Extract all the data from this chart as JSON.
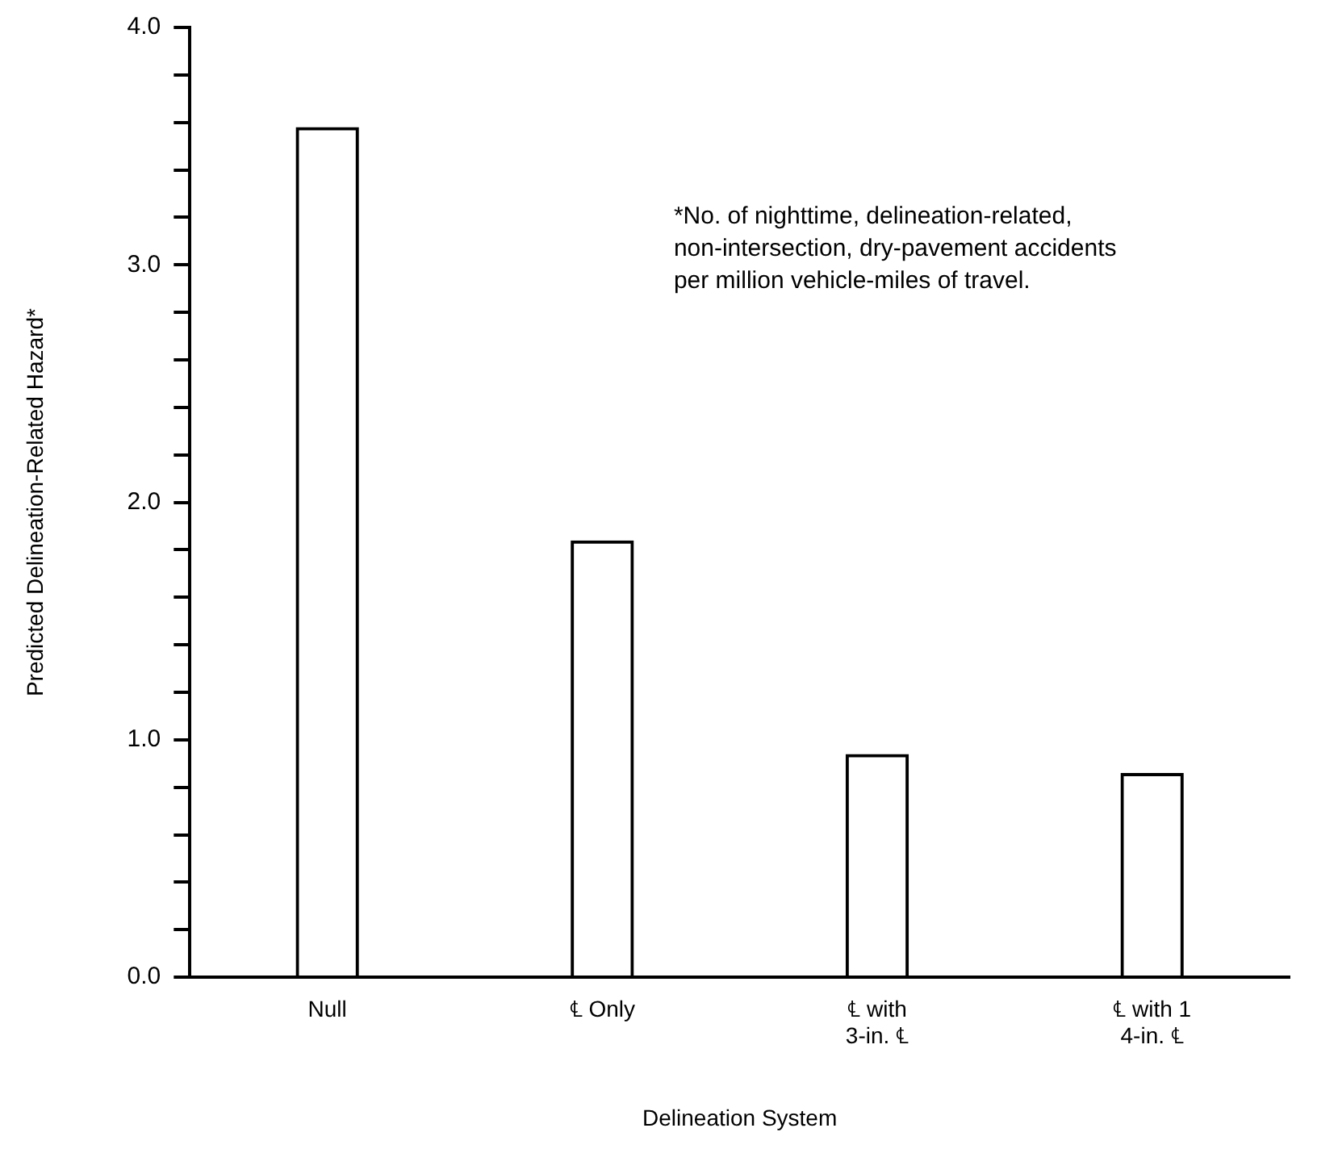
{
  "chart_data": {
    "type": "bar",
    "xlabel": "Delineation System",
    "ylabel": "Predicted Delineation-Related Hazard*",
    "categories": [
      "Null",
      "℄ Only",
      "℄ with\n3-in. ℄",
      "℄ with 1\n4-in. ℄"
    ],
    "values": [
      3.58,
      1.84,
      0.94,
      0.86
    ],
    "color": "#000000",
    "ylim": [
      0,
      4
    ],
    "yticks": [
      {
        "value": 0,
        "label": "0.0"
      },
      {
        "value": 0.2,
        "label": null
      },
      {
        "value": 0.4,
        "label": null
      },
      {
        "value": 0.6,
        "label": null
      },
      {
        "value": 0.8,
        "label": null
      },
      {
        "value": 1,
        "label": "1.0"
      },
      {
        "value": 1.2,
        "label": null
      },
      {
        "value": 1.4,
        "label": null
      },
      {
        "value": 1.6,
        "label": null
      },
      {
        "value": 1.8,
        "label": null
      },
      {
        "value": 2,
        "label": "2.0"
      },
      {
        "value": 2.2,
        "label": null
      },
      {
        "value": 2.4,
        "label": null
      },
      {
        "value": 2.6,
        "label": null
      },
      {
        "value": 2.8,
        "label": null
      },
      {
        "value": 3,
        "label": "3.0"
      },
      {
        "value": 3.2,
        "label": null
      },
      {
        "value": 3.4,
        "label": null
      },
      {
        "value": 3.6,
        "label": null
      },
      {
        "value": 3.8,
        "label": null
      },
      {
        "value": 4,
        "label": "4.0"
      }
    ],
    "annotations": [
      "*No. of nighttime, delineation-related,\nnon-intersection, dry-pavement accidents\nper million vehicle-miles of travel."
    ],
    "grid": false,
    "legend": false
  }
}
